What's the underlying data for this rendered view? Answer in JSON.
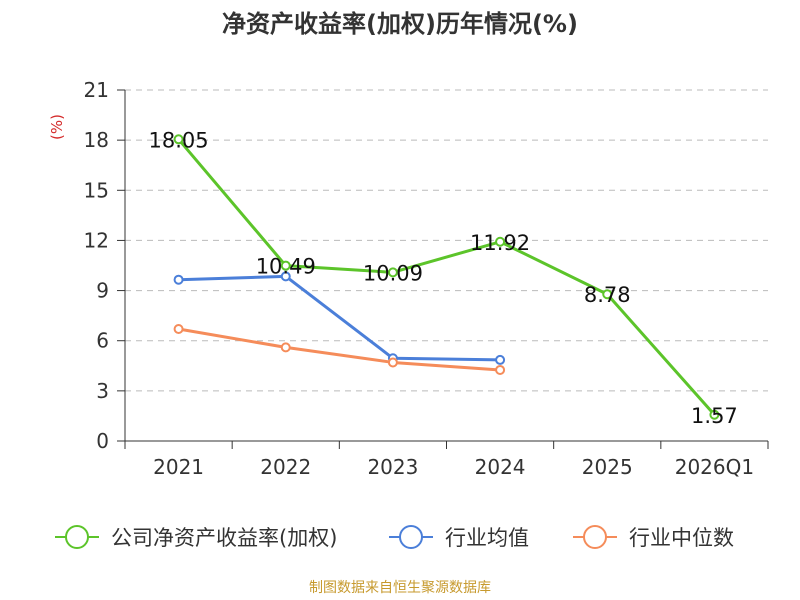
{
  "chart_data": {
    "type": "line",
    "title": "净资产收益率(加权)历年情况(%)",
    "ylabel": "(%)",
    "xlabel": "",
    "categories": [
      "2021",
      "2022",
      "2023",
      "2024",
      "2025",
      "2026Q1"
    ],
    "ylim": [
      0,
      21
    ],
    "yticks": [
      0,
      3,
      6,
      9,
      12,
      15,
      18,
      21
    ],
    "grid": true,
    "legend_position": "bottom",
    "series": [
      {
        "name": "公司净资产收益率(加权)",
        "color": "#5cc42a",
        "values": [
          18.05,
          10.49,
          10.09,
          11.92,
          8.78,
          1.57
        ],
        "labels": [
          "18.05",
          "10.49",
          "10.09",
          "11.92",
          "8.78",
          "1.57"
        ]
      },
      {
        "name": "行业均值",
        "color": "#4b7fd9",
        "values": [
          9.65,
          9.85,
          4.95,
          4.85,
          null,
          null
        ]
      },
      {
        "name": "行业中位数",
        "color": "#f58c5a",
        "values": [
          6.7,
          5.6,
          4.7,
          4.25,
          null,
          null
        ]
      }
    ]
  },
  "footer": {
    "source": "制图数据来自恒生聚源数据库"
  },
  "colors": {
    "title": "#333333",
    "axis": "#333333",
    "grid": "#bbbbbb",
    "ylabel": "#d42a2a",
    "source": "#c79a2e"
  }
}
